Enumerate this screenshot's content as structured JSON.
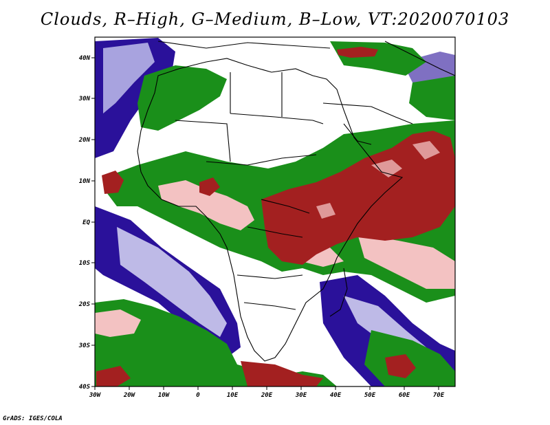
{
  "title": "Clouds, R–High, G–Medium, B–Low, VT:2020070103",
  "credit": "GrADS: IGES/COLA",
  "legend": {
    "high": {
      "label": "High",
      "color": "#a32020"
    },
    "medium": {
      "label": "Medium",
      "color": "#1a8f1a"
    },
    "low": {
      "label": "Low",
      "color": "#2a119a"
    }
  },
  "map": {
    "lat_ticks": [
      "40N",
      "30N",
      "20N",
      "10N",
      "EQ",
      "10S",
      "20S",
      "30S",
      "40S"
    ],
    "lon_ticks": [
      "30W",
      "20W",
      "10W",
      "0",
      "10E",
      "20E",
      "30E",
      "40E",
      "50E",
      "60E",
      "70E"
    ]
  }
}
